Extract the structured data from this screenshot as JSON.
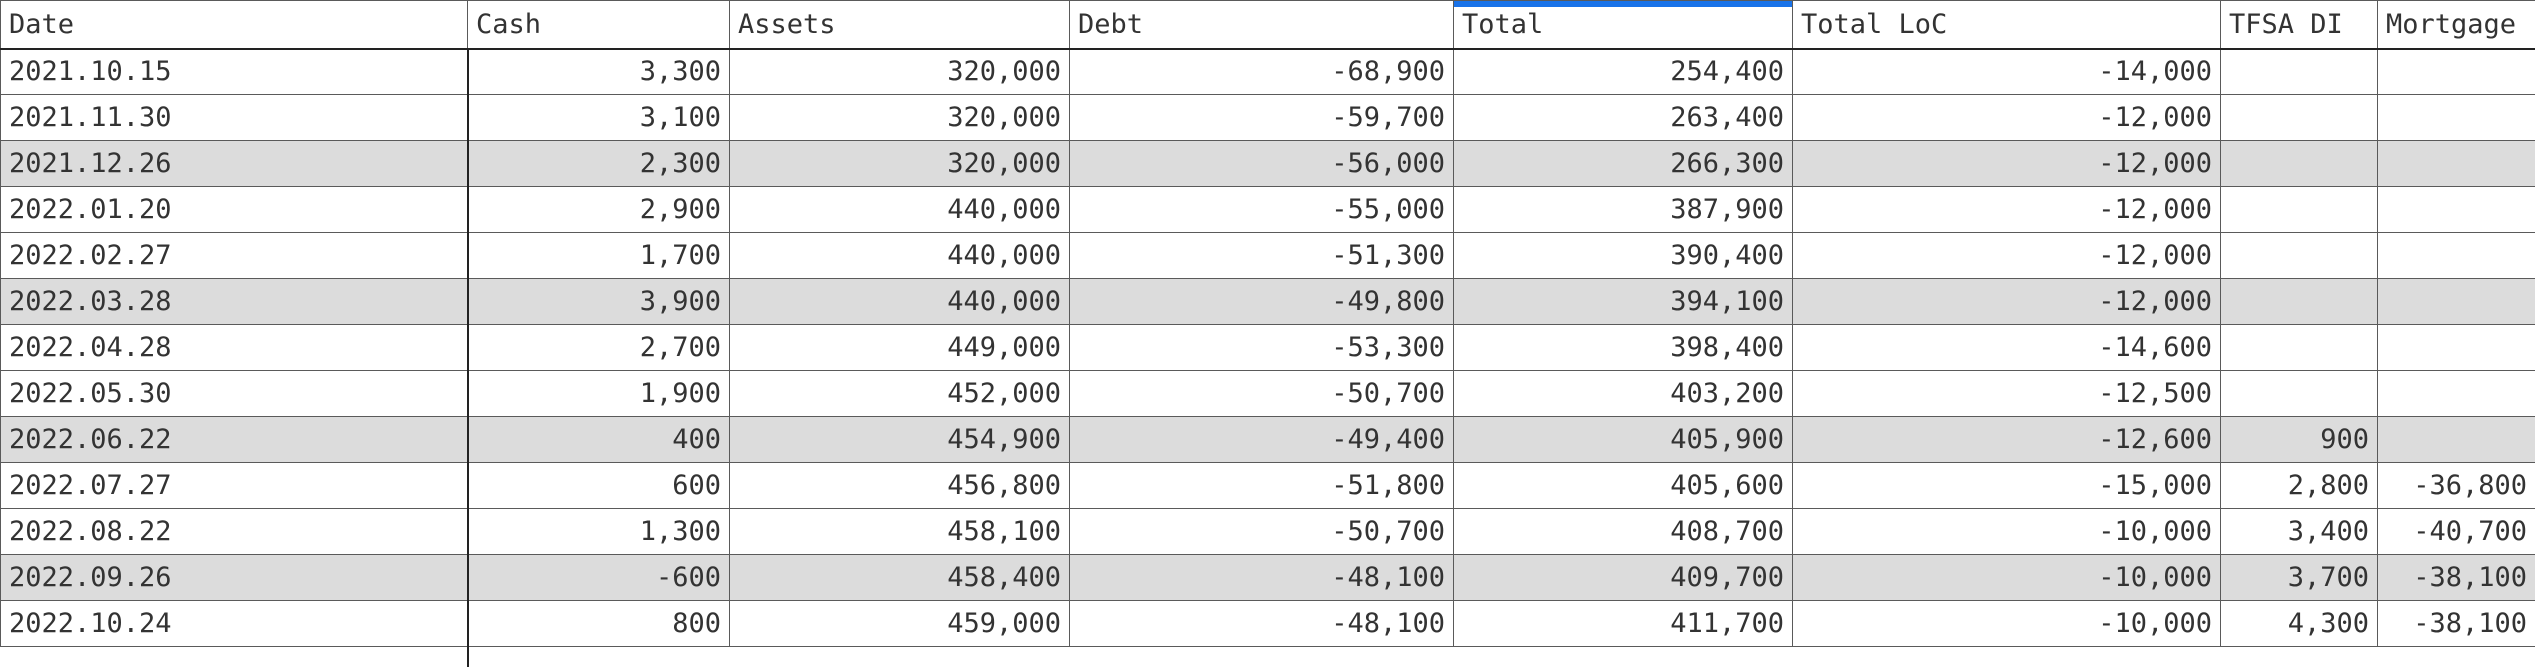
{
  "columns": {
    "date": "Date",
    "cash": "Cash",
    "assets": "Assets",
    "debt": "Debt",
    "total": "Total",
    "total_loc": "Total LoC",
    "tfsa_di": "TFSA DI",
    "mortgage": "Mortgage"
  },
  "active_column": "Total",
  "colors": {
    "selection": "#1a73e8",
    "shaded_row": "#dcdcdc"
  },
  "rows": [
    {
      "date": "2021.10.15",
      "cash": "3,300",
      "assets": "320,000",
      "debt": "-68,900",
      "total": "254,400",
      "total_loc": "-14,000",
      "tfsa_di": "",
      "mortgage": "",
      "shaded": false
    },
    {
      "date": "2021.11.30",
      "cash": "3,100",
      "assets": "320,000",
      "debt": "-59,700",
      "total": "263,400",
      "total_loc": "-12,000",
      "tfsa_di": "",
      "mortgage": "",
      "shaded": false
    },
    {
      "date": "2021.12.26",
      "cash": "2,300",
      "assets": "320,000",
      "debt": "-56,000",
      "total": "266,300",
      "total_loc": "-12,000",
      "tfsa_di": "",
      "mortgage": "",
      "shaded": true
    },
    {
      "date": "2022.01.20",
      "cash": "2,900",
      "assets": "440,000",
      "debt": "-55,000",
      "total": "387,900",
      "total_loc": "-12,000",
      "tfsa_di": "",
      "mortgage": "",
      "shaded": false
    },
    {
      "date": "2022.02.27",
      "cash": "1,700",
      "assets": "440,000",
      "debt": "-51,300",
      "total": "390,400",
      "total_loc": "-12,000",
      "tfsa_di": "",
      "mortgage": "",
      "shaded": false
    },
    {
      "date": "2022.03.28",
      "cash": "3,900",
      "assets": "440,000",
      "debt": "-49,800",
      "total": "394,100",
      "total_loc": "-12,000",
      "tfsa_di": "",
      "mortgage": "",
      "shaded": true
    },
    {
      "date": "2022.04.28",
      "cash": "2,700",
      "assets": "449,000",
      "debt": "-53,300",
      "total": "398,400",
      "total_loc": "-14,600",
      "tfsa_di": "",
      "mortgage": "",
      "shaded": false
    },
    {
      "date": "2022.05.30",
      "cash": "1,900",
      "assets": "452,000",
      "debt": "-50,700",
      "total": "403,200",
      "total_loc": "-12,500",
      "tfsa_di": "",
      "mortgage": "",
      "shaded": false
    },
    {
      "date": "2022.06.22",
      "cash": "400",
      "assets": "454,900",
      "debt": "-49,400",
      "total": "405,900",
      "total_loc": "-12,600",
      "tfsa_di": "900",
      "mortgage": "",
      "shaded": true
    },
    {
      "date": "2022.07.27",
      "cash": "600",
      "assets": "456,800",
      "debt": "-51,800",
      "total": "405,600",
      "total_loc": "-15,000",
      "tfsa_di": "2,800",
      "mortgage": "-36,800",
      "shaded": false
    },
    {
      "date": "2022.08.22",
      "cash": "1,300",
      "assets": "458,100",
      "debt": "-50,700",
      "total": "408,700",
      "total_loc": "-10,000",
      "tfsa_di": "3,400",
      "mortgage": "-40,700",
      "shaded": false
    },
    {
      "date": "2022.09.26",
      "cash": "-600",
      "assets": "458,400",
      "debt": "-48,100",
      "total": "409,700",
      "total_loc": "-10,000",
      "tfsa_di": "3,700",
      "mortgage": "-38,100",
      "shaded": true
    },
    {
      "date": "2022.10.24",
      "cash": "800",
      "assets": "459,000",
      "debt": "-48,100",
      "total": "411,700",
      "total_loc": "-10,000",
      "tfsa_di": "4,300",
      "mortgage": "-38,100",
      "shaded": false
    }
  ]
}
